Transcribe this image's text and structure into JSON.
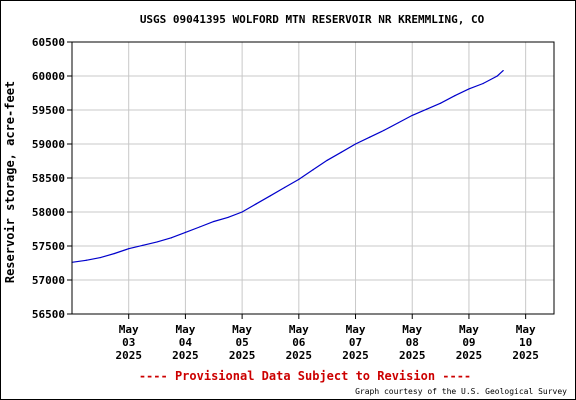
{
  "chart_data": {
    "type": "line",
    "title": "USGS 09041395 WOLFORD MTN RESERVOIR NR KREMMLING, CO",
    "ylabel": "Reservoir storage, acre-feet",
    "xlabel": "",
    "ylim": [
      56500,
      60500
    ],
    "yticks": [
      56500,
      57000,
      57500,
      58000,
      58500,
      59000,
      59500,
      60000,
      60500
    ],
    "xlim": [
      "2025-05-02T00:00",
      "2025-05-10T12:00"
    ],
    "xticks": [
      {
        "date": "2025-05-03",
        "line1": "May",
        "line2": "03",
        "line3": "2025"
      },
      {
        "date": "2025-05-04",
        "line1": "May",
        "line2": "04",
        "line3": "2025"
      },
      {
        "date": "2025-05-05",
        "line1": "May",
        "line2": "05",
        "line3": "2025"
      },
      {
        "date": "2025-05-06",
        "line1": "May",
        "line2": "06",
        "line3": "2025"
      },
      {
        "date": "2025-05-07",
        "line1": "May",
        "line2": "07",
        "line3": "2025"
      },
      {
        "date": "2025-05-08",
        "line1": "May",
        "line2": "08",
        "line3": "2025"
      },
      {
        "date": "2025-05-09",
        "line1": "May",
        "line2": "09",
        "line3": "2025"
      },
      {
        "date": "2025-05-10",
        "line1": "May",
        "line2": "10",
        "line3": "2025"
      }
    ],
    "grid": true,
    "line_color": "#0000cc",
    "series": [
      {
        "x": [
          "2025-05-02T00:00",
          "2025-05-02T06:00",
          "2025-05-02T12:00",
          "2025-05-02T18:00",
          "2025-05-03T00:00",
          "2025-05-03T06:00",
          "2025-05-03T12:00",
          "2025-05-03T18:00",
          "2025-05-04T00:00",
          "2025-05-04T06:00",
          "2025-05-04T12:00",
          "2025-05-04T18:00",
          "2025-05-05T00:00",
          "2025-05-05T06:00",
          "2025-05-05T12:00",
          "2025-05-05T18:00",
          "2025-05-06T00:00",
          "2025-05-06T06:00",
          "2025-05-06T12:00",
          "2025-05-06T18:00",
          "2025-05-07T00:00",
          "2025-05-07T06:00",
          "2025-05-07T12:00",
          "2025-05-07T18:00",
          "2025-05-08T00:00",
          "2025-05-08T06:00",
          "2025-05-08T12:00",
          "2025-05-08T18:00",
          "2025-05-09T00:00",
          "2025-05-09T06:00",
          "2025-05-09T12:00",
          "2025-05-09T14:30"
        ],
        "values": [
          57260,
          57290,
          57330,
          57390,
          57460,
          57510,
          57560,
          57620,
          57700,
          57780,
          57860,
          57920,
          58000,
          58120,
          58240,
          58360,
          58480,
          58620,
          58760,
          58880,
          59000,
          59100,
          59200,
          59310,
          59420,
          59510,
          59600,
          59710,
          59810,
          59890,
          60000,
          60080
        ]
      }
    ]
  },
  "footer": {
    "provisional": "---- Provisional Data Subject to Revision ----",
    "courtesy": "Graph courtesy of the U.S. Geological Survey"
  }
}
